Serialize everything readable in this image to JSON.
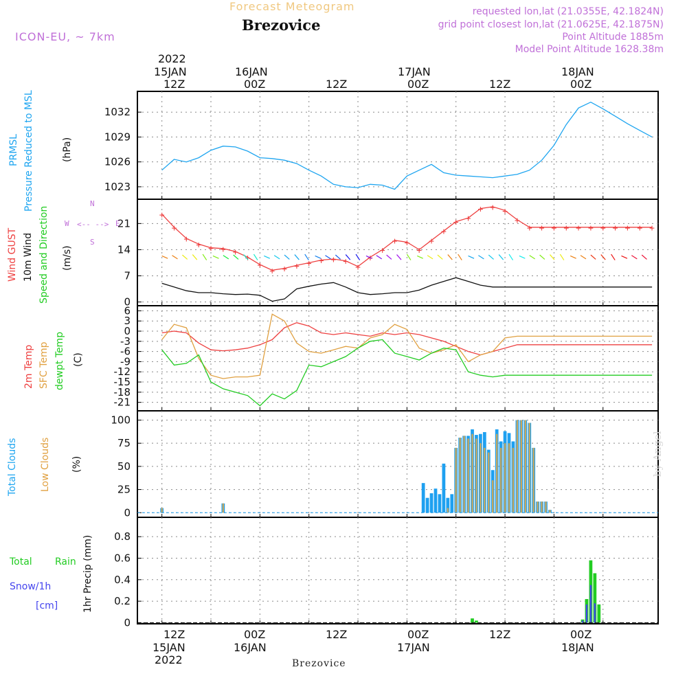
{
  "header": {
    "title": "Forecast Meteogram",
    "location": "Brezovice",
    "model": "ICON-EU, ~ 7km",
    "requested": "requested lon,lat (21.0355E, 42.1824N)",
    "grid_point": "grid point closest lon,lat (21.0625E, 42.1875N)",
    "point_altitude": "Point Altitude 1885m",
    "model_altitude": "Model Point Altitude 1628.38m",
    "credit": "by Angel",
    "footer_location": "Brezovice"
  },
  "time_axis": {
    "top_year": "2022",
    "top_dates": [
      "15JAN",
      "16JAN",
      "17JAN",
      "18JAN"
    ],
    "hour_labels": [
      "12Z",
      "00Z",
      "12Z",
      "00Z",
      "12Z",
      "00Z"
    ],
    "bottom_dates": [
      "15JAN",
      "16JAN",
      "17JAN",
      "18JAN"
    ],
    "bottom_year": "2022"
  },
  "panel_labels": {
    "pressure": [
      "PRMSL",
      "Pressure Reduced to MSL",
      "(hPa)"
    ],
    "wind": [
      "Wind GUST",
      "10m Wind",
      "Speed and Direction",
      "(m/s)"
    ],
    "compass": {
      "n": "N",
      "s": "S",
      "w": "W",
      "e": "E"
    },
    "temp": [
      "2m Temp",
      "SFC Temp",
      "dewpt Temp",
      "(C)"
    ],
    "clouds": [
      "Total Clouds",
      "Low Clouds",
      "(%)"
    ],
    "precip": [
      "Total",
      "Rain",
      "Snow/1h",
      "[cm]",
      "1hr Precip (mm)"
    ]
  },
  "colors": {
    "pressure": "#1ea5f0",
    "gust": "#ee4040",
    "wind": "#111111",
    "temp2m": "#ee4040",
    "sfc": "#e0a040",
    "dewpt": "#22cc22",
    "total_clouds": "#1ea0f0",
    "low_clouds": "#c8a860",
    "rain": "#22cc22",
    "snow": "#4444ee",
    "label_magenta": "#c070d8",
    "title_orange": "#f0c880"
  },
  "chart_data": [
    {
      "type": "line",
      "id": "pressure",
      "ylabel": "(hPa)",
      "ylim": [
        1021.5,
        1034.5
      ],
      "yticks": [
        1023,
        1026,
        1029,
        1032
      ],
      "x": [
        0,
        3,
        6,
        9,
        12,
        15,
        18,
        21,
        24,
        27,
        30,
        33,
        36,
        39,
        42,
        45,
        48,
        51,
        54,
        57,
        60,
        63,
        66,
        69,
        72,
        75,
        78,
        81,
        84,
        87,
        90,
        93,
        96,
        99,
        102,
        105,
        108,
        111,
        114,
        117,
        120
      ],
      "series": [
        {
          "name": "PRMSL",
          "values": [
            1025.0,
            1026.3,
            1026.0,
            1026.5,
            1027.4,
            1027.9,
            1027.8,
            1027.3,
            1026.5,
            1026.4,
            1026.2,
            1025.8,
            1025.0,
            1024.3,
            1023.3,
            1023.0,
            1022.9,
            1023.3,
            1023.2,
            1022.7,
            1024.3,
            1025.0,
            1025.7,
            1024.7,
            1024.4,
            1024.3,
            1024.2,
            1024.1,
            1024.3,
            1024.5,
            1025.0,
            1026.2,
            1028.0,
            1030.5,
            1032.5,
            1033.2,
            1032.4,
            1031.5,
            1030.6,
            1029.8,
            1029.0
          ]
        }
      ]
    },
    {
      "type": "line",
      "id": "wind",
      "ylabel": "(m/s)",
      "ylim": [
        -1,
        27.5
      ],
      "yticks": [
        0,
        7,
        14,
        21
      ],
      "x": [
        0,
        3,
        6,
        9,
        12,
        15,
        18,
        21,
        24,
        27,
        30,
        33,
        36,
        39,
        42,
        45,
        48,
        51,
        54,
        57,
        60,
        63,
        66,
        69,
        72,
        75,
        78,
        81,
        84,
        87,
        90,
        93,
        96,
        99,
        102,
        105,
        108,
        111,
        114,
        117,
        120
      ],
      "series": [
        {
          "name": "Wind GUST",
          "values": [
            23.5,
            20.0,
            17.0,
            15.5,
            14.5,
            14.3,
            13.5,
            12.0,
            10.0,
            8.5,
            9.0,
            9.8,
            10.5,
            11.2,
            11.5,
            11.0,
            9.5,
            12.0,
            14.0,
            16.5,
            16.0,
            14.0,
            16.5,
            19.0,
            21.5,
            22.5,
            25.0,
            25.5,
            24.5,
            22.0,
            20.0,
            20.0,
            20.0,
            20.0,
            20.0,
            20.0,
            20.0,
            20.0,
            20.0,
            20.0,
            20.0
          ]
        },
        {
          "name": "10m Wind",
          "values": [
            5.0,
            4.0,
            3.0,
            2.5,
            2.5,
            2.2,
            2.0,
            2.1,
            1.8,
            0.2,
            0.8,
            3.5,
            4.2,
            4.8,
            5.2,
            4.0,
            2.5,
            2.0,
            2.2,
            2.5,
            2.5,
            3.2,
            4.5,
            5.5,
            6.5,
            5.5,
            4.5,
            4.0,
            4.0,
            4.0,
            4.0,
            4.0,
            4.0,
            4.0,
            4.0,
            4.0,
            4.0,
            4.0,
            4.0,
            4.0,
            4.0
          ]
        }
      ]
    },
    {
      "type": "line",
      "id": "temperature",
      "ylabel": "(C)",
      "ylim": [
        -23.5,
        7.5
      ],
      "yticks": [
        6,
        3,
        0,
        -3,
        -6,
        -9,
        -12,
        -15,
        -18,
        -21
      ],
      "x": [
        0,
        3,
        6,
        9,
        12,
        15,
        18,
        21,
        24,
        27,
        30,
        33,
        36,
        39,
        42,
        45,
        48,
        51,
        54,
        57,
        60,
        63,
        66,
        69,
        72,
        75,
        78,
        81,
        84,
        87,
        90,
        93,
        96,
        99,
        102,
        105,
        108,
        111,
        114,
        117,
        120
      ],
      "series": [
        {
          "name": "2m Temp",
          "values": [
            -0.5,
            0.0,
            -0.5,
            -3.5,
            -5.5,
            -5.8,
            -5.5,
            -5.0,
            -4.0,
            -2.5,
            1.0,
            2.5,
            1.5,
            -0.5,
            -1.0,
            -0.5,
            -1.0,
            -1.5,
            -0.5,
            -1.0,
            -0.5,
            -1.0,
            -2.0,
            -3.0,
            -4.5,
            -6.0,
            -7.0,
            -6.0,
            -5.0,
            -4.0,
            -4.0,
            -4.0,
            -4.0,
            -4.0,
            -4.0,
            -4.0,
            -4.0,
            -4.0,
            -4.0,
            -4.0,
            -4.0
          ]
        },
        {
          "name": "SFC Temp",
          "values": [
            -2.5,
            2.0,
            1.0,
            -8.0,
            -13.0,
            -14.0,
            -13.5,
            -13.5,
            -13.0,
            5.0,
            3.0,
            -3.5,
            -6.0,
            -6.5,
            -5.5,
            -4.5,
            -5.0,
            -2.0,
            -1.0,
            2.0,
            0.5,
            -5.0,
            -6.5,
            -5.5,
            -4.0,
            -9.0,
            -7.0,
            -6.0,
            -2.0,
            -1.5,
            -1.5,
            -1.5,
            -1.5,
            -1.5,
            -1.5,
            -1.5,
            -1.5,
            -1.5,
            -1.5,
            -1.5,
            -1.5
          ]
        },
        {
          "name": "dewpt Temp",
          "values": [
            -5.5,
            -10.0,
            -9.5,
            -7.0,
            -15.0,
            -17.0,
            -18.0,
            -19.0,
            -22.0,
            -18.5,
            -20.0,
            -17.5,
            -10.0,
            -10.5,
            -9.0,
            -7.5,
            -5.0,
            -3.0,
            -2.5,
            -6.5,
            -7.5,
            -8.5,
            -6.5,
            -5.0,
            -5.5,
            -12.0,
            -13.0,
            -13.5,
            -13.0,
            -13.0,
            -13.0,
            -13.0,
            -13.0,
            -13.0,
            -13.0,
            -13.0,
            -13.0,
            -13.0,
            -13.0,
            -13.0,
            -13.0
          ]
        }
      ]
    },
    {
      "type": "bar",
      "id": "clouds",
      "ylabel": "(%)",
      "ylim": [
        -5,
        110
      ],
      "yticks": [
        0,
        25,
        50,
        75,
        100
      ],
      "x": [
        0,
        15,
        63,
        64,
        65,
        66,
        67,
        68,
        69,
        70,
        71,
        72,
        73,
        74,
        75,
        76,
        77,
        78,
        79,
        80,
        81,
        82,
        83,
        84,
        85,
        86,
        87,
        88,
        89,
        90,
        91,
        92,
        93,
        94,
        95,
        96,
        97,
        98,
        99,
        100,
        101,
        102,
        103,
        104,
        105,
        106,
        107,
        108,
        109
      ],
      "series": [
        {
          "name": "Total Clouds",
          "values": [
            5,
            10,
            0,
            32,
            16,
            21,
            26,
            20,
            53,
            16,
            20,
            70,
            81,
            83,
            83,
            90,
            84,
            85,
            87,
            68,
            46,
            90,
            77,
            88,
            86,
            77,
            100,
            100,
            100,
            97,
            70,
            12,
            12,
            12,
            3,
            0,
            0,
            0,
            0,
            0,
            0,
            0,
            0,
            0,
            0,
            0,
            0,
            0,
            0
          ]
        },
        {
          "name": "Low Clouds",
          "values": [
            5,
            10,
            0,
            0,
            0,
            0,
            0,
            0,
            0,
            5,
            0,
            70,
            81,
            83,
            80,
            85,
            80,
            75,
            70,
            65,
            35,
            85,
            70,
            75,
            75,
            70,
            100,
            100,
            100,
            97,
            70,
            12,
            12,
            12,
            3,
            0,
            0,
            0,
            0,
            0,
            0,
            0,
            0,
            0,
            0,
            0,
            0,
            0,
            0
          ]
        }
      ]
    },
    {
      "type": "bar",
      "id": "precip",
      "ylabel": "1hr Precip (mm)",
      "ylim": [
        -0.01,
        0.98
      ],
      "yticks": [
        0,
        0.2,
        0.4,
        0.6,
        0.8
      ],
      "x": [
        76,
        77,
        103,
        104,
        105,
        106,
        107
      ],
      "series": [
        {
          "name": "Total",
          "values": [
            0.04,
            0.02,
            0.03,
            0.22,
            0.58,
            0.46,
            0.17
          ]
        },
        {
          "name": "Snow/1h",
          "values": [
            0,
            0,
            0.02,
            0.17,
            0.35,
            0.18,
            0
          ]
        }
      ]
    }
  ]
}
